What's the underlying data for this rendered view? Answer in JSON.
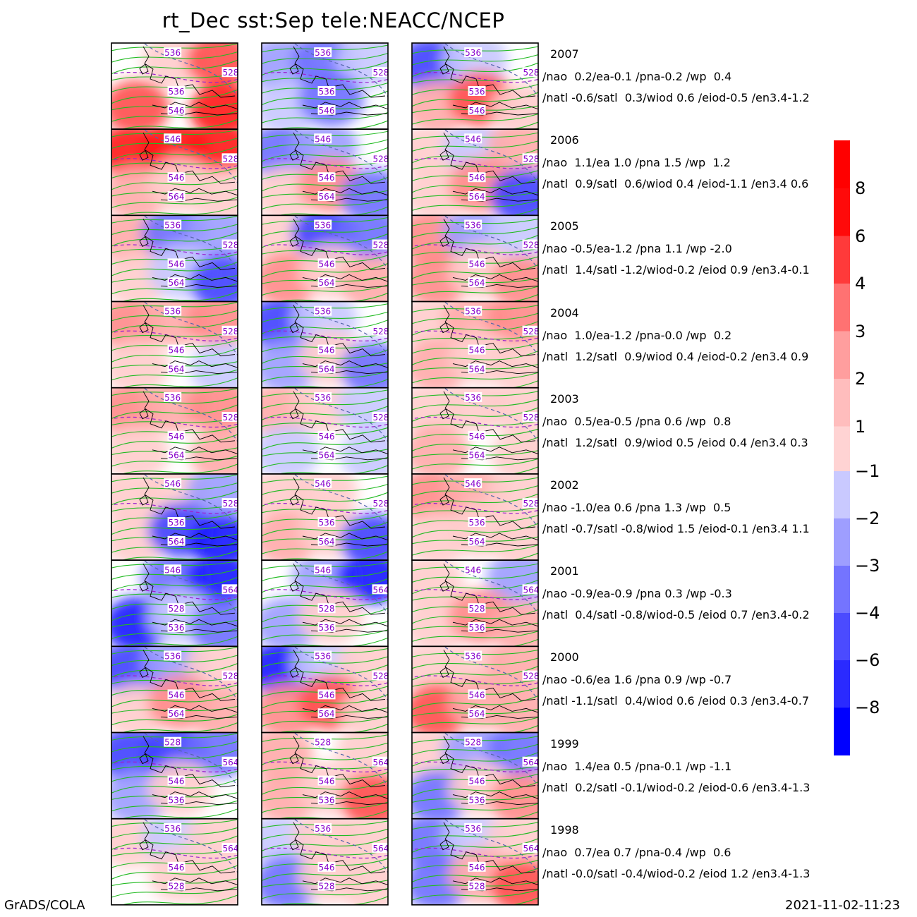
{
  "title": "rt_Dec  sst:Sep  tele:NEACC/NCEP",
  "footer_left": "GrADS/COLA",
  "footer_right": "2021-11-02-11:23",
  "colorbar": {
    "positive": [
      {
        "label": "8",
        "color": "#ff0a0a"
      },
      {
        "label": "6",
        "color": "#ff3a3a"
      },
      {
        "label": "4",
        "color": "#ff7272"
      },
      {
        "label": "3",
        "color": "#ff9e9e"
      },
      {
        "label": "2",
        "color": "#ffbdbd"
      },
      {
        "label": "1",
        "color": "#ffd3d3"
      }
    ],
    "top_color": "#ff0000",
    "negative": [
      {
        "label": "-1",
        "color": "#c9c9ff"
      },
      {
        "label": "-2",
        "color": "#9e9eff"
      },
      {
        "label": "-3",
        "color": "#7474ff"
      },
      {
        "label": "-4",
        "color": "#4b4bff"
      },
      {
        "label": "-6",
        "color": "#2a2aff"
      },
      {
        "label": "-8",
        "color": "#0a0aff"
      }
    ],
    "bottom_color": "#0000ff"
  },
  "contour_colors": {
    "height": "#22bb22",
    "dashed": "#9922cc",
    "label": "#8800cc"
  },
  "rows": [
    {
      "year": "2007",
      "line1": "/nao  0.2/ea-0.1 /pna-0.2 /wp  0.4",
      "line2": "/natl -0.6/satl  0.3/wiod 0.6 /eiod-0.5 /en3.4-1.2",
      "anom": [
        [
          0.1,
          0.3,
          0.7,
          0.7,
          0.0,
          0.9
        ],
        [
          -0.4,
          -0.5,
          -0.3,
          -0.3,
          -0.6,
          0.0
        ],
        [
          -0.8,
          -0.2,
          0.0,
          0.4,
          0.7,
          0.2
        ]
      ],
      "labels": [
        "536",
        "536",
        "546",
        "528"
      ]
    },
    {
      "year": "2006",
      "line1": "/nao  1.1/ea 1.0 /pna 1.5 /wp  1.2",
      "line2": "/natl  0.9/satl  0.6/wiod 0.4 /eiod-1.1 /en3.4 0.6",
      "anom": [
        [
          0.9,
          1.0,
          0.9,
          0.4,
          0.2,
          0.3
        ],
        [
          -0.5,
          -0.4,
          0.0,
          0.3,
          0.5,
          -0.6
        ],
        [
          0.3,
          -0.3,
          0.4,
          0.2,
          0.6,
          -0.7
        ]
      ],
      "labels": [
        "546",
        "546",
        "564",
        "528"
      ]
    },
    {
      "year": "2005",
      "line1": "/nao -0.5/ea-1.2 /pna 1.1 /wp -2.0",
      "line2": "/natl  1.4/satl -1.2/wiod-0.2 /eiod 0.9 /en3.4-0.1",
      "anom": [
        [
          0.4,
          -0.6,
          -0.4,
          0.3,
          -0.2,
          -0.8
        ],
        [
          0.3,
          -0.8,
          -0.6,
          0.5,
          0.2,
          0.4
        ],
        [
          0.5,
          -0.4,
          -0.3,
          0.6,
          0.2,
          0.5
        ]
      ],
      "labels": [
        "536",
        "546",
        "564",
        "528"
      ]
    },
    {
      "year": "2004",
      "line1": "/nao  1.0/ea-1.2 /pna-0.0 /wp  0.2",
      "line2": "/natl  1.2/satl  0.9/wiod 0.4 /eiod-0.2 /en3.4 0.9",
      "anom": [
        [
          0.6,
          0.4,
          0.5,
          0.3,
          0.0,
          -0.3
        ],
        [
          -0.7,
          -0.3,
          0.0,
          -0.4,
          0.3,
          -0.5
        ],
        [
          0.3,
          0.4,
          0.5,
          0.4,
          0.3,
          0.2
        ]
      ],
      "labels": [
        "536",
        "546",
        "564",
        "528"
      ]
    },
    {
      "year": "2003",
      "line1": "/nao  0.5/ea-0.5 /pna 0.6 /wp  0.8",
      "line2": "/natl  1.2/satl  0.9/wiod 0.5 /eiod 0.4 /en3.4 0.3",
      "anom": [
        [
          0.6,
          0.4,
          0.5,
          0.3,
          0.0,
          0.4
        ],
        [
          0.4,
          0.3,
          -0.3,
          -0.2,
          0.0,
          -0.2
        ],
        [
          0.3,
          0.2,
          0.2,
          0.4,
          0.1,
          0.3
        ]
      ],
      "labels": [
        "536",
        "546",
        "564",
        "528"
      ]
    },
    {
      "year": "2002",
      "line1": "/nao -1.0/ea 0.6 /pna 1.3 /wp  0.5",
      "line2": "/natl -0.7/satl -0.8/wiod 1.5 /eiod-0.1 /en3.4 1.1",
      "anom": [
        [
          0.3,
          0.2,
          -0.4,
          0.2,
          -0.8,
          -1.0
        ],
        [
          0.2,
          0.3,
          0.0,
          0.4,
          0.2,
          -0.7
        ],
        [
          0.5,
          0.4,
          0.3,
          0.3,
          0.2,
          0.3
        ]
      ],
      "labels": [
        "546",
        "536",
        "564",
        "528"
      ]
    },
    {
      "year": "2001",
      "line1": "/nao -0.9/ea-0.9 /pna 0.3 /wp -0.3",
      "line2": "/natl  0.4/satl -0.8/wiod-0.5 /eiod 0.7 /en3.4-0.2",
      "anom": [
        [
          0.1,
          -0.6,
          -0.9,
          -1.0,
          -0.3,
          -0.6
        ],
        [
          0.0,
          -0.4,
          -0.9,
          -0.4,
          0.3,
          0.0
        ],
        [
          0.2,
          0.1,
          -0.4,
          0.3,
          0.5,
          0.4
        ]
      ],
      "labels": [
        "546",
        "528",
        "536",
        "564"
      ]
    },
    {
      "year": "2000",
      "line1": "/nao -0.6/ea 1.6 /pna 0.9 /wp -0.7",
      "line2": "/natl -1.1/satl  0.4/wiod 0.6 /eiod 0.3 /en3.4-0.7",
      "anom": [
        [
          -0.8,
          -0.4,
          0.3,
          0.3,
          0.6,
          0.4
        ],
        [
          -0.9,
          -0.3,
          0.3,
          0.5,
          0.7,
          0.3
        ],
        [
          0.3,
          0.2,
          0.4,
          0.7,
          0.4,
          0.4
        ]
      ],
      "labels": [
        "536",
        "546",
        "564",
        "528"
      ]
    },
    {
      "year": "1999",
      "line1": "/nao  1.4/ea 0.5 /pna-0.1 /wp -1.1",
      "line2": "/natl  0.2/satl -0.1/wiod-0.2 /eiod-0.6 /en3.4-1.3",
      "anom": [
        [
          -0.7,
          -0.8,
          -0.5,
          -0.4,
          0.2,
          0.0
        ],
        [
          0.4,
          0.0,
          0.3,
          0.4,
          0.3,
          0.8
        ],
        [
          0.2,
          -0.4,
          -0.5,
          -0.5,
          0.2,
          0.5
        ]
      ],
      "labels": [
        "528",
        "546",
        "536",
        "564"
      ]
    },
    {
      "year": "1998",
      "line1": "/nao  0.7/ea 0.7 /pna-0.4 /wp  0.6",
      "line2": "/natl -0.0/satl -0.4/wiod-0.2 /eiod 1.2 /en3.4-1.3",
      "anom": [
        [
          0.3,
          -0.3,
          0.2,
          0.0,
          0.3,
          0.2
        ],
        [
          -0.2,
          0.2,
          0.3,
          -0.5,
          0.2,
          0.3
        ],
        [
          -0.6,
          -0.3,
          0.3,
          -0.6,
          0.4,
          0.7
        ]
      ],
      "labels": [
        "536",
        "546",
        "528",
        "564"
      ]
    }
  ]
}
